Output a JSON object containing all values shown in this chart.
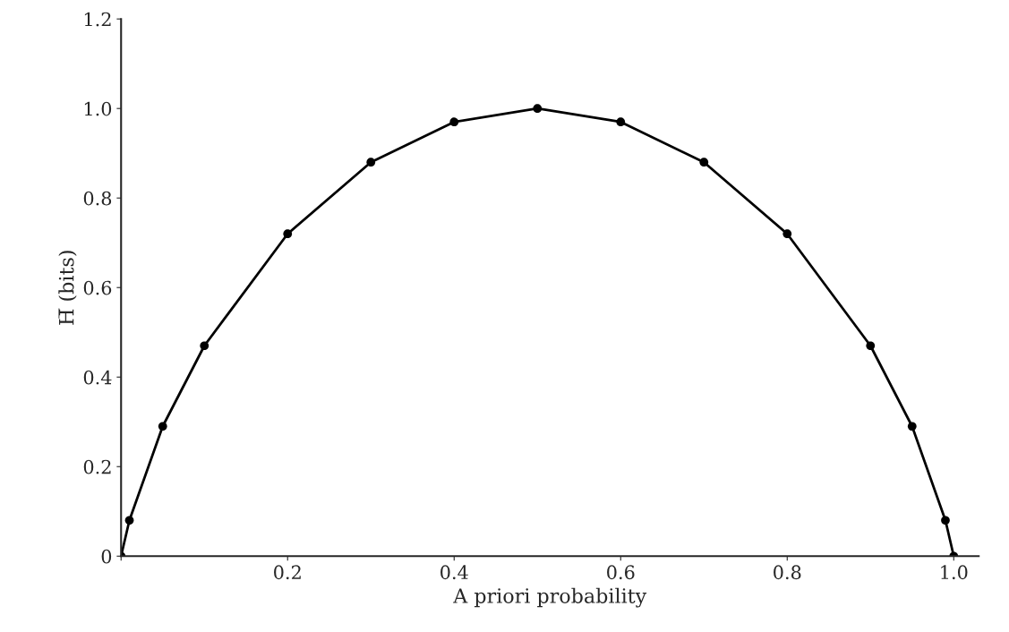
{
  "chart_data": {
    "type": "line",
    "xlabel": "A priori probability",
    "ylabel": "H̅ (bits)",
    "x": [
      0,
      0.01,
      0.05,
      0.1,
      0.2,
      0.3,
      0.4,
      0.5,
      0.6,
      0.7,
      0.8,
      0.9,
      0.95,
      0.99,
      1.0
    ],
    "series": [
      {
        "color": "#000000",
        "values": [
          0,
          0.08,
          0.29,
          0.47,
          0.72,
          0.88,
          0.97,
          1.0,
          0.97,
          0.88,
          0.72,
          0.47,
          0.29,
          0.08,
          0
        ]
      }
    ],
    "xlim": [
      0,
      1.03
    ],
    "ylim": [
      0,
      1.2
    ],
    "xticks": [
      {
        "value": 0,
        "label": null
      },
      0.2,
      0.4,
      0.6,
      0.8,
      {
        "value": 1,
        "label": "1.0"
      }
    ],
    "yticks": [
      0,
      0.2,
      0.4,
      0.6,
      0.8,
      {
        "value": 1,
        "label": "1.0"
      },
      1.2
    ],
    "marker": "circle",
    "line_style": "solid",
    "grid": false,
    "legend": false
  }
}
